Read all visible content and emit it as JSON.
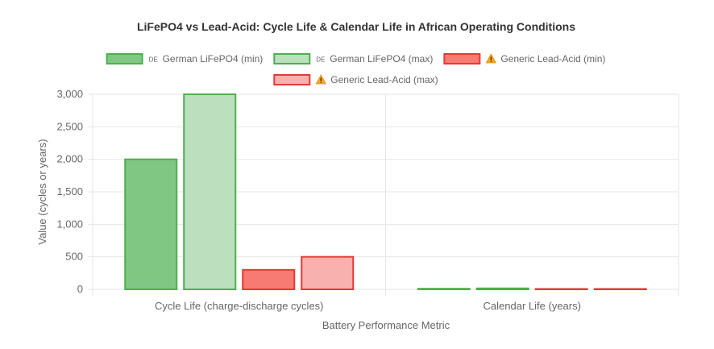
{
  "chart_data": {
    "type": "bar",
    "title": "LiFePO4 vs Lead-Acid: Cycle Life & Calendar Life in African Operating Conditions",
    "xlabel": "Battery Performance Metric",
    "ylabel": "Value (cycles or years)",
    "categories": [
      "Cycle Life (charge-discharge cycles)",
      "Calendar Life (years)"
    ],
    "ylim": [
      0,
      3000
    ],
    "yticks": [
      "0",
      "500",
      "1,000",
      "1,500",
      "2,000",
      "2,500",
      "3,000"
    ],
    "ytick_values": [
      0,
      500,
      1000,
      1500,
      2000,
      2500,
      3000
    ],
    "legend_position": "top",
    "grid": true,
    "series": [
      {
        "name": "German LiFePO4 (min)",
        "prefix": "DE",
        "prefix_type": "text",
        "values": [
          2000,
          10
        ],
        "fill": "#81c784",
        "stroke": "#4caf50"
      },
      {
        "name": "German LiFePO4 (max)",
        "prefix": "DE",
        "prefix_type": "text",
        "values": [
          3000,
          15
        ],
        "fill": "#bce0bd",
        "stroke": "#4caf50"
      },
      {
        "name": "Generic Lead-Acid (min)",
        "prefix": "warning",
        "prefix_type": "icon",
        "values": [
          300,
          3
        ],
        "fill": "#f77b72",
        "stroke": "#e53935"
      },
      {
        "name": "Generic Lead-Acid (max)",
        "prefix": "warning",
        "prefix_type": "icon",
        "values": [
          500,
          5
        ],
        "fill": "#f9b1ae",
        "stroke": "#e53935"
      }
    ]
  }
}
